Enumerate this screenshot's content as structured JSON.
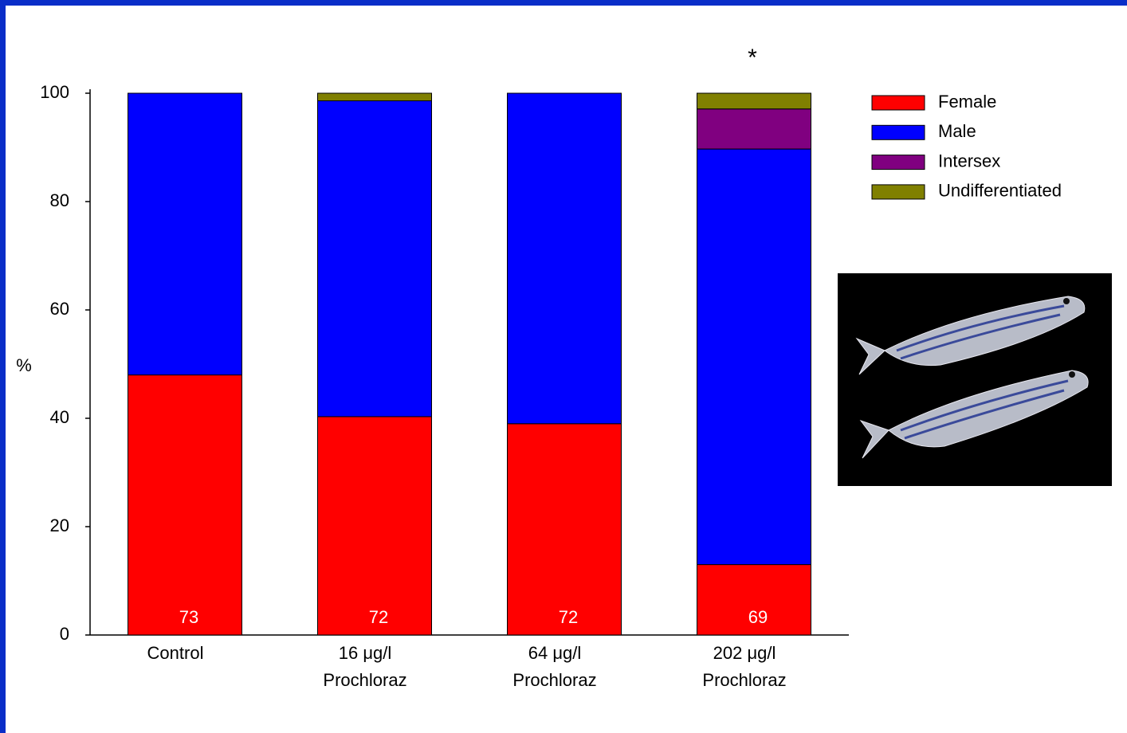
{
  "chart_data": {
    "type": "stacked_bar",
    "categories": [
      "Control",
      "16  μg/l\nProchloraz",
      "64  μg/l\nProchloraz",
      "202  μg/l\nProchloraz"
    ],
    "series": [
      {
        "name": "Female",
        "color": "#ff0000",
        "values": [
          48,
          40.3,
          39,
          13
        ]
      },
      {
        "name": "Male",
        "color": "#0000ff",
        "values": [
          52,
          58.3,
          61,
          76.7
        ]
      },
      {
        "name": "Intersex",
        "color": "#800080",
        "values": [
          0,
          0,
          0,
          7.4
        ]
      },
      {
        "name": "Undifferentiated",
        "color": "#808000",
        "values": [
          0,
          1.4,
          0,
          2.9
        ]
      }
    ],
    "sample_sizes": [
      73,
      72,
      72,
      69
    ],
    "annotations": [
      {
        "category": 3,
        "text": "*"
      }
    ],
    "y_label": "%",
    "ylim": [
      0,
      100
    ],
    "yticks": [
      0,
      20,
      40,
      60,
      80,
      100
    ],
    "legend": "right"
  }
}
